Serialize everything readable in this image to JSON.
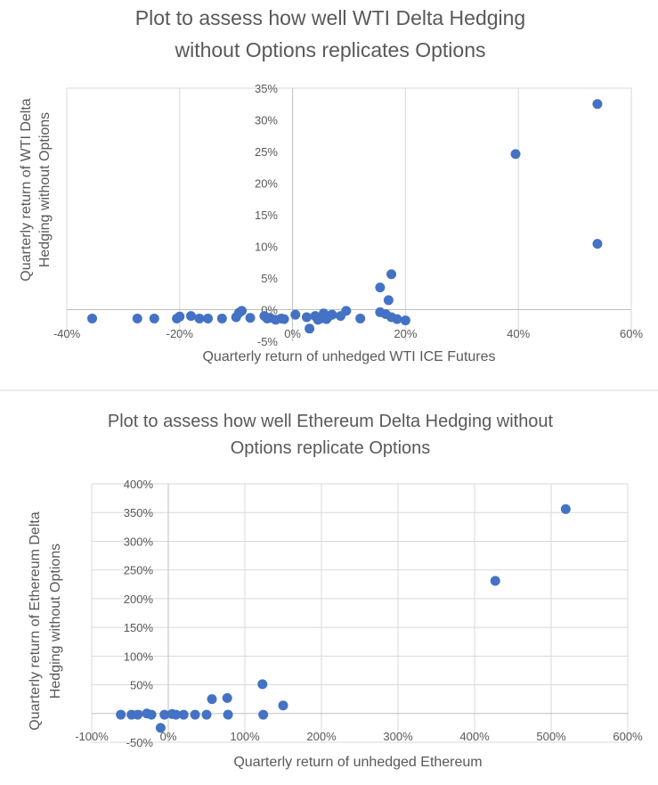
{
  "chart_data": [
    {
      "type": "scatter",
      "title_lines": [
        "Plot to assess how well WTI Delta Hedging",
        "without Options replicates Options"
      ],
      "xlabel": "Quarterly return of unhedged WTI ICE Futures",
      "ylabel_lines": [
        "Quarterly return of WTI Delta",
        "Hedging without Options"
      ],
      "xlim": [
        -40,
        60
      ],
      "ylim": [
        -5,
        35
      ],
      "xticks": [
        -40,
        -20,
        0,
        20,
        40,
        60
      ],
      "yticks": [
        -5,
        0,
        5,
        10,
        15,
        20,
        25,
        30,
        35
      ],
      "xtick_labels": [
        "-40%",
        "-20%",
        "0%",
        "20%",
        "40%",
        "60%"
      ],
      "ytick_labels": [
        "-5%",
        "0%",
        "5%",
        "10%",
        "15%",
        "20%",
        "25%",
        "30%",
        "35%"
      ],
      "grid": "vertical",
      "color": "#4472c4",
      "points": [
        [
          -35.5,
          -1.4
        ],
        [
          -27.5,
          -1.4
        ],
        [
          -24.5,
          -1.4
        ],
        [
          -20.5,
          -1.4
        ],
        [
          -20,
          -1.1
        ],
        [
          -18,
          -1.0
        ],
        [
          -16.5,
          -1.4
        ],
        [
          -15,
          -1.4
        ],
        [
          -12.5,
          -1.4
        ],
        [
          -10,
          -1.2
        ],
        [
          -9.5,
          -0.5
        ],
        [
          -9,
          -0.2
        ],
        [
          -7.5,
          -1.3
        ],
        [
          -5,
          -1.0
        ],
        [
          -4.5,
          -1.4
        ],
        [
          -4,
          -1.3
        ],
        [
          -3,
          -1.6
        ],
        [
          -2,
          -1.4
        ],
        [
          -1.5,
          -1.5
        ],
        [
          0.5,
          -0.8
        ],
        [
          2.5,
          -1.2
        ],
        [
          3,
          -3.0
        ],
        [
          4,
          -1.0
        ],
        [
          4.5,
          -1.6
        ],
        [
          5,
          -1.4
        ],
        [
          5.5,
          -0.6
        ],
        [
          6,
          -1.5
        ],
        [
          6.5,
          -1.0
        ],
        [
          7,
          -0.8
        ],
        [
          8.5,
          -1.0
        ],
        [
          9.5,
          -0.2
        ],
        [
          12,
          -1.4
        ],
        [
          15.5,
          -0.4
        ],
        [
          16.5,
          -0.7
        ],
        [
          17.5,
          -1.2
        ],
        [
          18.5,
          -1.5
        ],
        [
          20,
          -1.7
        ],
        [
          15.5,
          3.5
        ],
        [
          17,
          1.5
        ],
        [
          17.5,
          5.6
        ],
        [
          39.5,
          24.6
        ],
        [
          54,
          10.4
        ],
        [
          54,
          32.5
        ]
      ]
    },
    {
      "type": "scatter",
      "title_lines": [
        "Plot to assess how well Ethereum Delta Hedging without",
        "Options replicate Options"
      ],
      "xlabel": "Quarterly return of unhedged Ethereum",
      "ylabel_lines": [
        "Quarterly return of Ethereum Delta",
        "Hedging without Options"
      ],
      "xlim": [
        -100,
        600
      ],
      "ylim": [
        -50,
        400
      ],
      "xticks": [
        -100,
        0,
        100,
        200,
        300,
        400,
        500,
        600
      ],
      "yticks": [
        -50,
        0,
        50,
        100,
        150,
        200,
        250,
        300,
        350,
        400
      ],
      "xtick_labels": [
        "-100%",
        "0%",
        "100%",
        "200%",
        "300%",
        "400%",
        "500%",
        "600%"
      ],
      "ytick_labels": [
        "-50%",
        "0%",
        "50%",
        "100%",
        "150%",
        "200%",
        "250%",
        "300%",
        "350%",
        "400%"
      ],
      "grid": "both",
      "color": "#4472c4",
      "points": [
        [
          -62,
          -2
        ],
        [
          -48,
          -2
        ],
        [
          -40,
          -2
        ],
        [
          -28,
          0
        ],
        [
          -22,
          -2
        ],
        [
          -10,
          -25
        ],
        [
          -5,
          -2
        ],
        [
          5,
          -1
        ],
        [
          10,
          -2
        ],
        [
          20,
          -2
        ],
        [
          35,
          -2
        ],
        [
          50,
          -2
        ],
        [
          57,
          25
        ],
        [
          77,
          27
        ],
        [
          78,
          -2
        ],
        [
          123,
          51
        ],
        [
          124,
          -2
        ],
        [
          150,
          14
        ],
        [
          427,
          231
        ],
        [
          519,
          356
        ]
      ]
    }
  ]
}
